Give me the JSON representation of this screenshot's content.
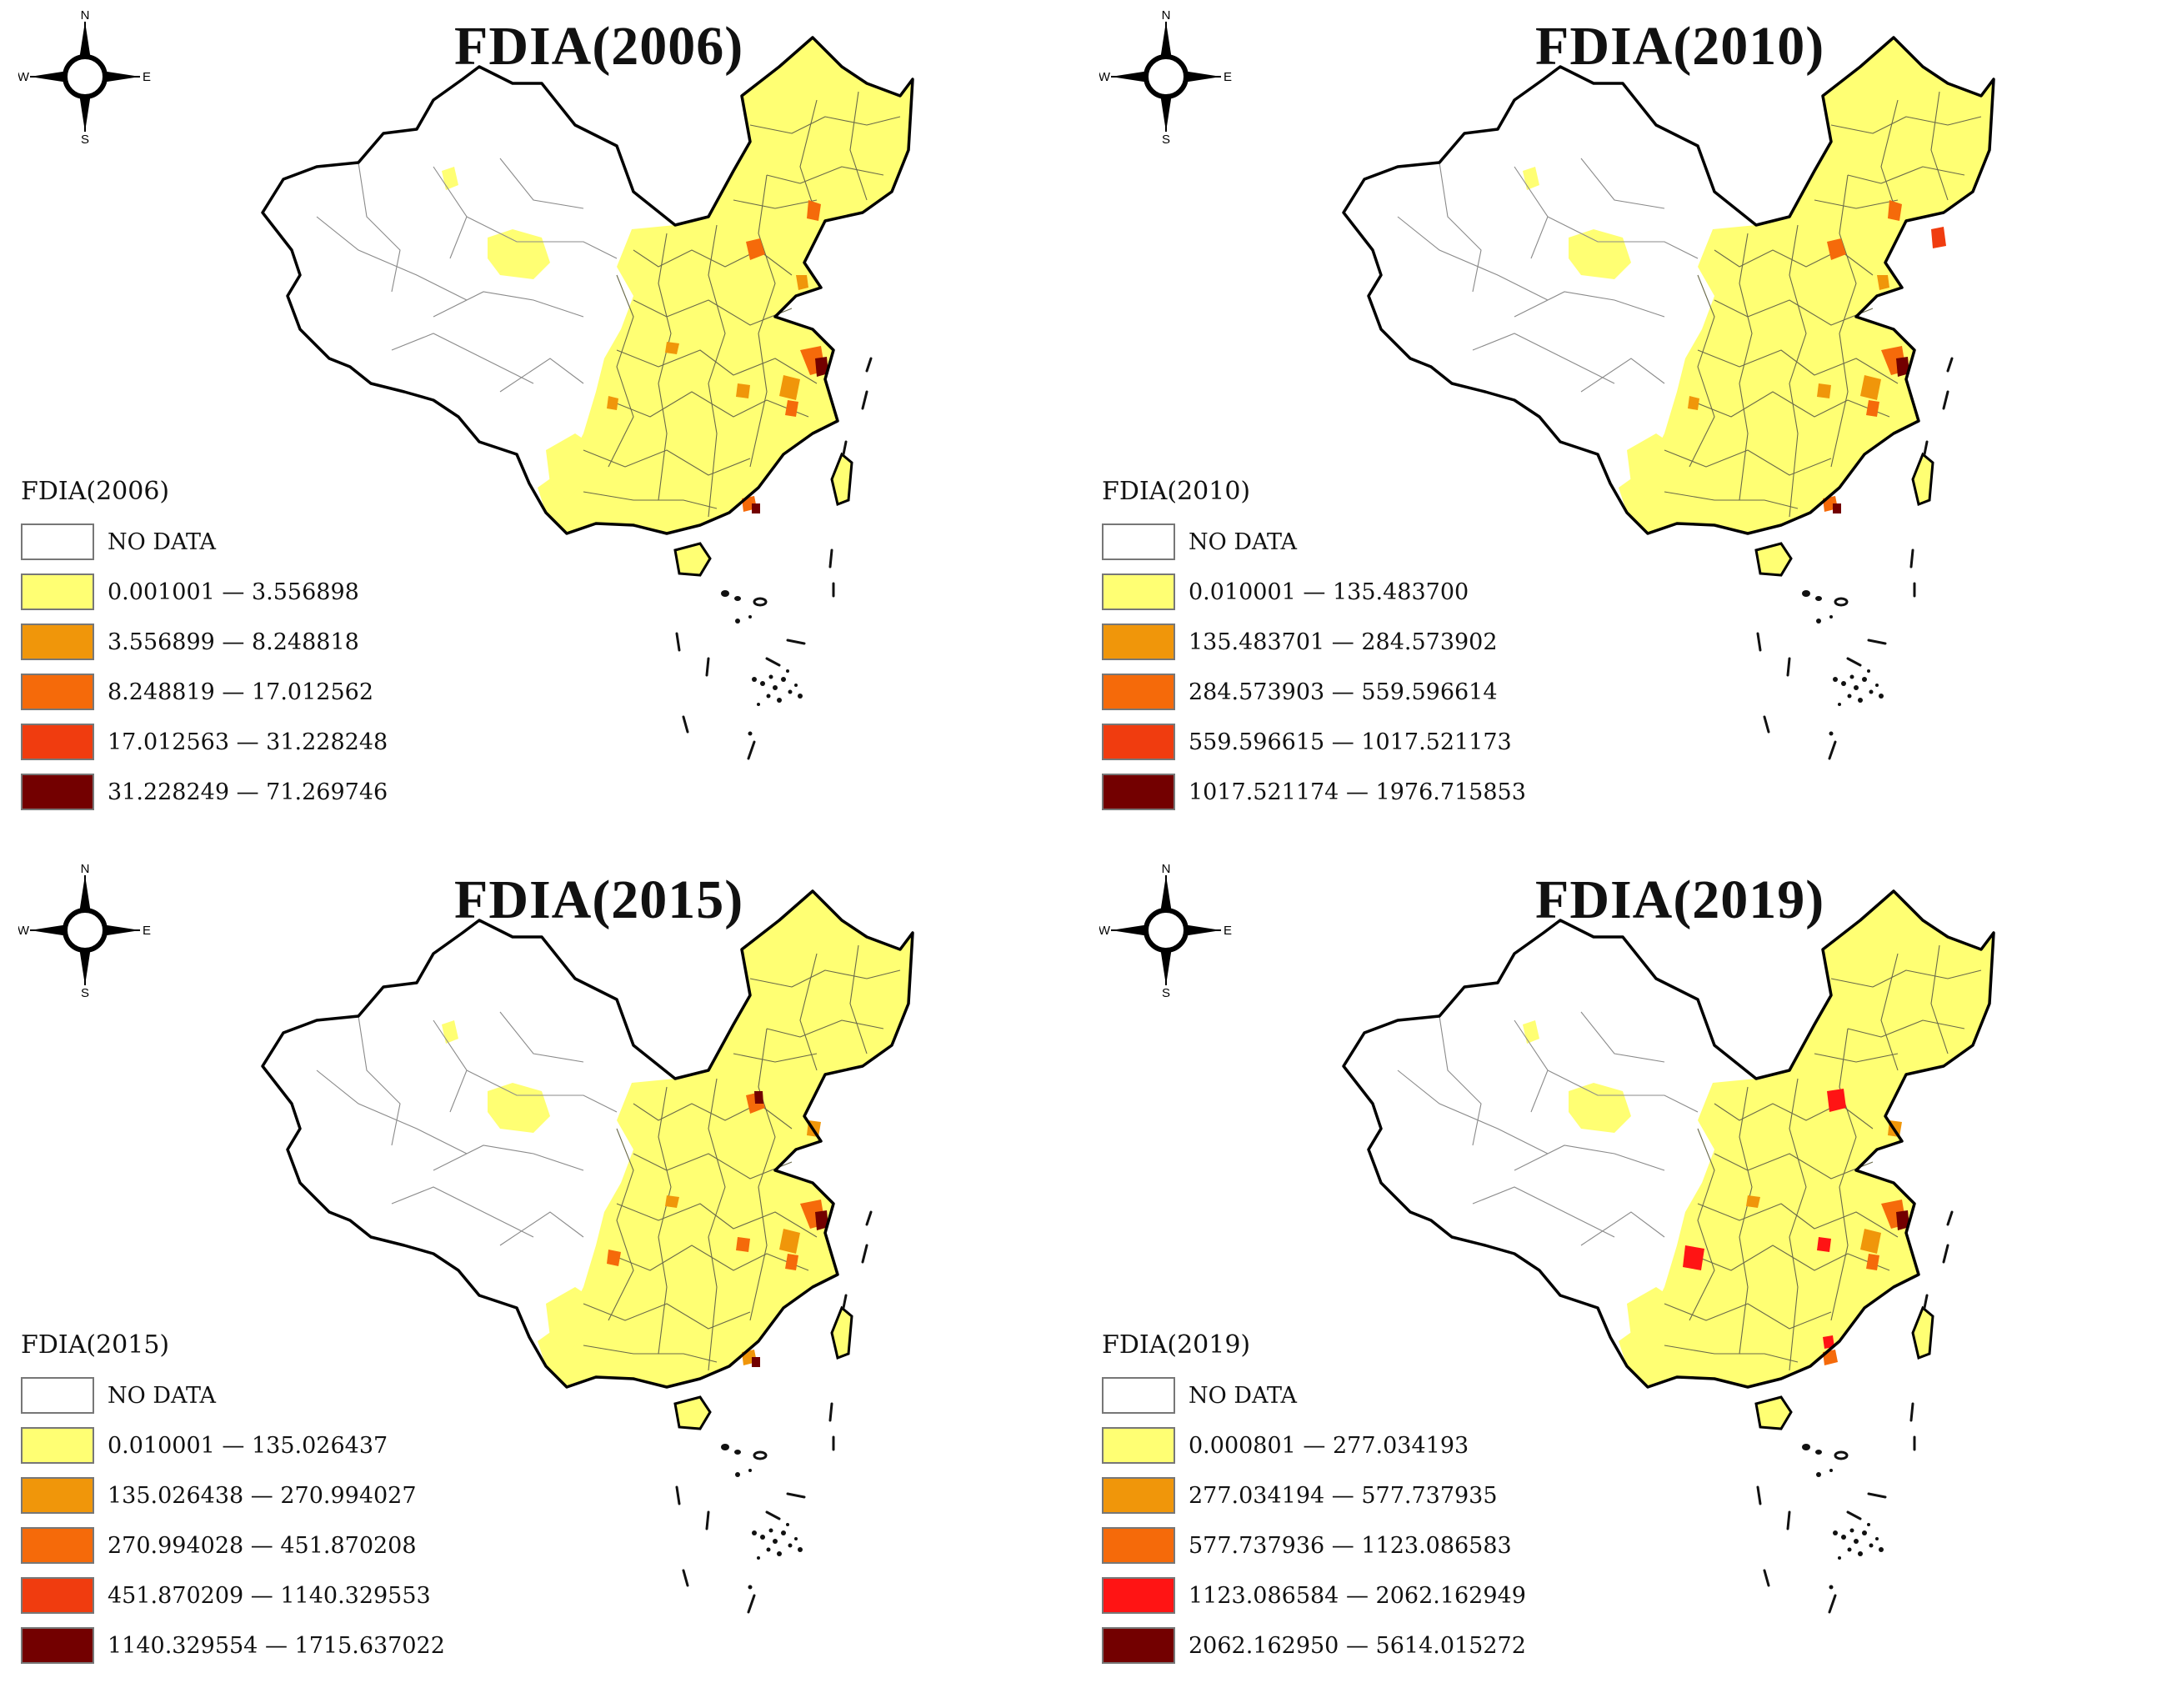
{
  "compass_labels": {
    "north": "N",
    "south": "S",
    "east": "E",
    "west": "W"
  },
  "status_colors": {
    "no_data": "#ffffff",
    "class1": "#ffff73",
    "class2": "#f0960a",
    "class3": "#f56a0a",
    "class4_orange_red": "#f03c0f",
    "class4_red": "#ff1414",
    "class5": "#730000"
  },
  "panels": [
    {
      "title": "FDIA(2006)",
      "legend_title": "FDIA(2006)",
      "classes": [
        {
          "label": "NO DATA",
          "color": "#ffffff"
        },
        {
          "label": "0.001001 — 3.556898",
          "color": "#ffff73"
        },
        {
          "label": "3.556899 — 8.248818",
          "color": "#f0960a"
        },
        {
          "label": "8.248819 — 17.012562",
          "color": "#f56a0a"
        },
        {
          "label": "17.012563 — 31.228248",
          "color": "#f03c0f"
        },
        {
          "label": "31.228249 — 71.269746",
          "color": "#730000"
        }
      ]
    },
    {
      "title": "FDIA(2010)",
      "legend_title": "FDIA(2010)",
      "classes": [
        {
          "label": "NO DATA",
          "color": "#ffffff"
        },
        {
          "label": "0.010001 — 135.483700",
          "color": "#ffff73"
        },
        {
          "label": "135.483701 — 284.573902",
          "color": "#f0960a"
        },
        {
          "label": "284.573903 — 559.596614",
          "color": "#f56a0a"
        },
        {
          "label": "559.596615 — 1017.521173",
          "color": "#f03c0f"
        },
        {
          "label": "1017.521174 — 1976.715853",
          "color": "#730000"
        }
      ]
    },
    {
      "title": "FDIA(2015)",
      "legend_title": "FDIA(2015)",
      "classes": [
        {
          "label": "NO DATA",
          "color": "#ffffff"
        },
        {
          "label": "0.010001 — 135.026437",
          "color": "#ffff73"
        },
        {
          "label": "135.026438 — 270.994027",
          "color": "#f0960a"
        },
        {
          "label": "270.994028 — 451.870208",
          "color": "#f56a0a"
        },
        {
          "label": "451.870209 — 1140.329553",
          "color": "#f03c0f"
        },
        {
          "label": "1140.329554 — 1715.637022",
          "color": "#730000"
        }
      ]
    },
    {
      "title": "FDIA(2019)",
      "legend_title": "FDIA(2019)",
      "classes": [
        {
          "label": "NO DATA",
          "color": "#ffffff"
        },
        {
          "label": "0.000801 — 277.034193",
          "color": "#ffff73"
        },
        {
          "label": "277.034194 — 577.737935",
          "color": "#f0960a"
        },
        {
          "label": "577.737936 — 1123.086583",
          "color": "#f56a0a"
        },
        {
          "label": "1123.086584 — 2062.162949",
          "color": "#ff1414"
        },
        {
          "label": "2062.162950 — 5614.015272",
          "color": "#730000"
        }
      ]
    }
  ]
}
